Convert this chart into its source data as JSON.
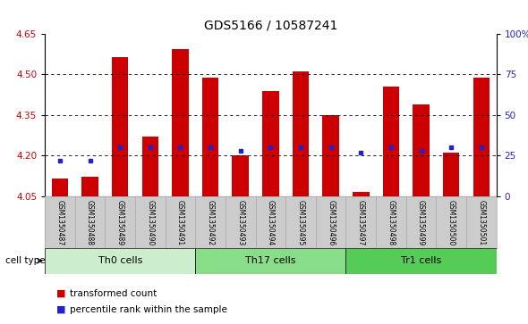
{
  "title": "GDS5166 / 10587241",
  "samples": [
    "GSM1350487",
    "GSM1350488",
    "GSM1350489",
    "GSM1350490",
    "GSM1350491",
    "GSM1350492",
    "GSM1350493",
    "GSM1350494",
    "GSM1350495",
    "GSM1350496",
    "GSM1350497",
    "GSM1350498",
    "GSM1350499",
    "GSM1350500",
    "GSM1350501"
  ],
  "transformed_counts": [
    4.115,
    4.12,
    4.565,
    4.27,
    4.595,
    4.49,
    4.2,
    4.44,
    4.51,
    4.35,
    4.065,
    4.455,
    4.39,
    4.21,
    4.49
  ],
  "percentile_ranks": [
    22,
    22,
    30,
    30,
    30,
    30,
    28,
    30,
    30,
    30,
    27,
    30,
    28,
    30,
    30
  ],
  "y_min": 4.05,
  "y_max": 4.65,
  "y_ticks": [
    4.05,
    4.2,
    4.35,
    4.5,
    4.65
  ],
  "right_y_ticks": [
    0,
    25,
    50,
    75,
    100
  ],
  "right_y_labels": [
    "0",
    "25",
    "50",
    "75",
    "100%"
  ],
  "bar_color": "#cc0000",
  "dot_color": "#2222cc",
  "cell_types": [
    {
      "label": "Th0 cells",
      "start": 0,
      "end": 5,
      "color": "#cceecc"
    },
    {
      "label": "Th17 cells",
      "start": 5,
      "end": 10,
      "color": "#88dd88"
    },
    {
      "label": "Tr1 cells",
      "start": 10,
      "end": 15,
      "color": "#55cc55"
    }
  ],
  "cell_type_label": "cell type",
  "legend_items": [
    {
      "label": "transformed count",
      "color": "#cc0000"
    },
    {
      "label": "percentile rank within the sample",
      "color": "#2222cc"
    }
  ],
  "background_color": "#ffffff",
  "bar_width": 0.55,
  "title_fontsize": 10,
  "label_fontsize": 5.5,
  "tick_fontsize": 7.5
}
